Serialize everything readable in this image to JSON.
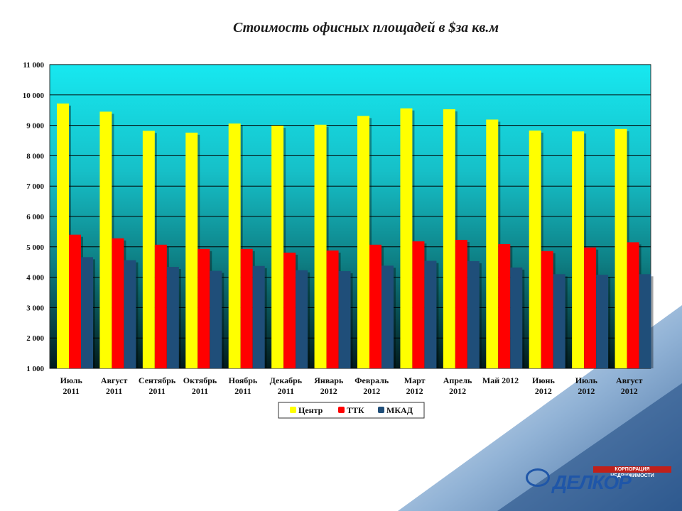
{
  "chart_data": {
    "type": "bar",
    "title": "Стоимость офисных площадей в $за кв.м",
    "categories": [
      [
        "Июль",
        "2011"
      ],
      [
        "Август",
        "2011"
      ],
      [
        "Сентябрь",
        "2011"
      ],
      [
        "Октябрь",
        "2011"
      ],
      [
        "Ноябрь",
        "2011"
      ],
      [
        "Декабрь",
        "2011"
      ],
      [
        "Январь",
        "2012"
      ],
      [
        "Февраль",
        "2012"
      ],
      [
        "Март",
        "2012"
      ],
      [
        "Апрель",
        "2012"
      ],
      [
        "Май 2012",
        ""
      ],
      [
        "Июнь",
        "2012"
      ],
      [
        "Июль",
        "2012"
      ],
      [
        "Август",
        "2012"
      ]
    ],
    "series": [
      {
        "name": "Центр",
        "color": "#ffff00",
        "values": [
          9720,
          9450,
          8820,
          8760,
          9060,
          8990,
          9020,
          9310,
          9560,
          9530,
          9190,
          8830,
          8800,
          8880
        ]
      },
      {
        "name": "ТТК",
        "color": "#ff0000",
        "values": [
          5400,
          5280,
          5070,
          4930,
          4930,
          4810,
          4880,
          5070,
          5180,
          5230,
          5090,
          4860,
          4980,
          5150
        ]
      },
      {
        "name": "МКАД",
        "color": "#1f4e79",
        "values": [
          4660,
          4560,
          4340,
          4210,
          4370,
          4230,
          4200,
          4380,
          4540,
          4530,
          4320,
          4100,
          4080,
          4100
        ]
      }
    ],
    "ylim": [
      1000,
      11000
    ],
    "yticks": [
      "1 000",
      "2 000",
      "3 000",
      "4 000",
      "5 000",
      "6 000",
      "7 000",
      "8 000",
      "9 000",
      "10 000",
      "11 000"
    ],
    "grid": true,
    "legend_position": "bottom"
  },
  "logo": {
    "tagline": "КОРПОРАЦИЯ НЕДВИЖИМОСТИ",
    "name": "ДЕЛКОР"
  }
}
